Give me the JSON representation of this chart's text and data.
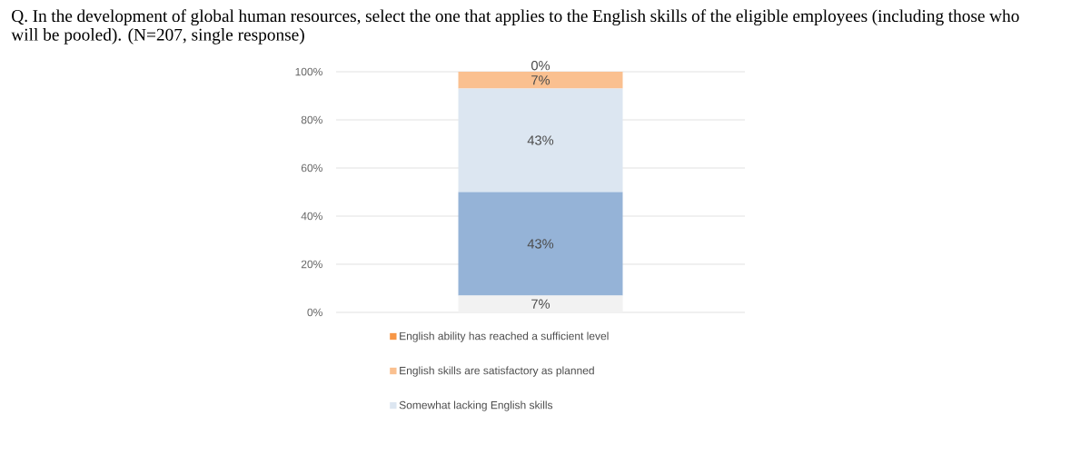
{
  "chart_data": {
    "type": "bar",
    "stacked": true,
    "title": "Q. In the development of global human resources, select the one that applies to the English skills of the eligible employees (including those who will be pooled). (N=207, single response)",
    "categories": [
      null
    ],
    "series": [
      {
        "color": "#f2f2f2",
        "values": [
          7
        ],
        "value_labels": [
          "7%"
        ]
      },
      {
        "color": "#95b3d7",
        "values": [
          43
        ],
        "value_labels": [
          "43%"
        ]
      },
      {
        "name": "Somewhat lacking English skills",
        "color": "#dce6f1",
        "values": [
          43
        ],
        "value_labels": [
          "43%"
        ]
      },
      {
        "name": "English skills are satisfactory as planned",
        "color": "#fac090",
        "values": [
          7
        ],
        "value_labels": [
          "7%"
        ]
      },
      {
        "name": "English ability has reached a sufficient level",
        "color": "#f79646",
        "values": [
          0
        ],
        "value_labels": [
          "0%"
        ]
      }
    ],
    "ylim": [
      0,
      100
    ],
    "yticks": [
      {
        "value": 0,
        "label": "0%"
      },
      {
        "value": 20,
        "label": "20%"
      },
      {
        "value": 40,
        "label": "40%"
      },
      {
        "value": 60,
        "label": "60%"
      },
      {
        "value": 80,
        "label": "80%"
      },
      {
        "value": 100,
        "label": "100%"
      }
    ],
    "grid": "y",
    "legend": "bottom"
  }
}
